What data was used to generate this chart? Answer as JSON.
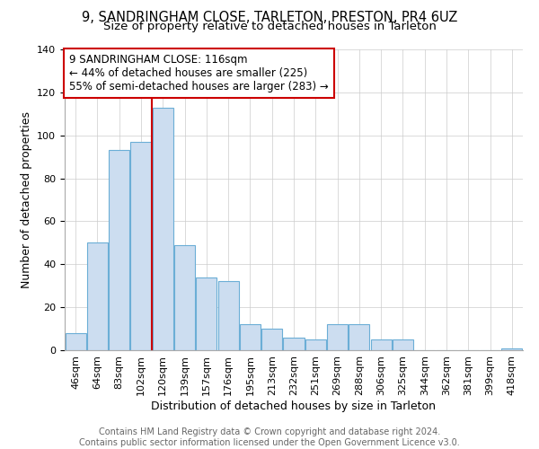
{
  "title": "9, SANDRINGHAM CLOSE, TARLETON, PRESTON, PR4 6UZ",
  "subtitle": "Size of property relative to detached houses in Tarleton",
  "xlabel": "Distribution of detached houses by size in Tarleton",
  "ylabel": "Number of detached properties",
  "bar_labels": [
    "46sqm",
    "64sqm",
    "83sqm",
    "102sqm",
    "120sqm",
    "139sqm",
    "157sqm",
    "176sqm",
    "195sqm",
    "213sqm",
    "232sqm",
    "251sqm",
    "269sqm",
    "288sqm",
    "306sqm",
    "325sqm",
    "344sqm",
    "362sqm",
    "381sqm",
    "399sqm",
    "418sqm"
  ],
  "bar_values": [
    8,
    50,
    93,
    97,
    113,
    49,
    34,
    32,
    12,
    10,
    6,
    5,
    12,
    12,
    5,
    5,
    0,
    0,
    0,
    0,
    1
  ],
  "bar_color": "#ccddf0",
  "bar_edge_color": "#6baed6",
  "vline_x_idx": 3,
  "vline_color": "#cc0000",
  "ylim": [
    0,
    140
  ],
  "yticks": [
    0,
    20,
    40,
    60,
    80,
    100,
    120,
    140
  ],
  "annotation_line1": "9 SANDRINGHAM CLOSE: 116sqm",
  "annotation_line2": "← 44% of detached houses are smaller (225)",
  "annotation_line3": "55% of semi-detached houses are larger (283) →",
  "annotation_box_color": "#ffffff",
  "annotation_box_edge": "#cc0000",
  "footer_line1": "Contains HM Land Registry data © Crown copyright and database right 2024.",
  "footer_line2": "Contains public sector information licensed under the Open Government Licence v3.0.",
  "title_fontsize": 10.5,
  "subtitle_fontsize": 9.5,
  "xlabel_fontsize": 9,
  "ylabel_fontsize": 9,
  "tick_fontsize": 8,
  "annot_fontsize": 8.5,
  "footer_fontsize": 7
}
